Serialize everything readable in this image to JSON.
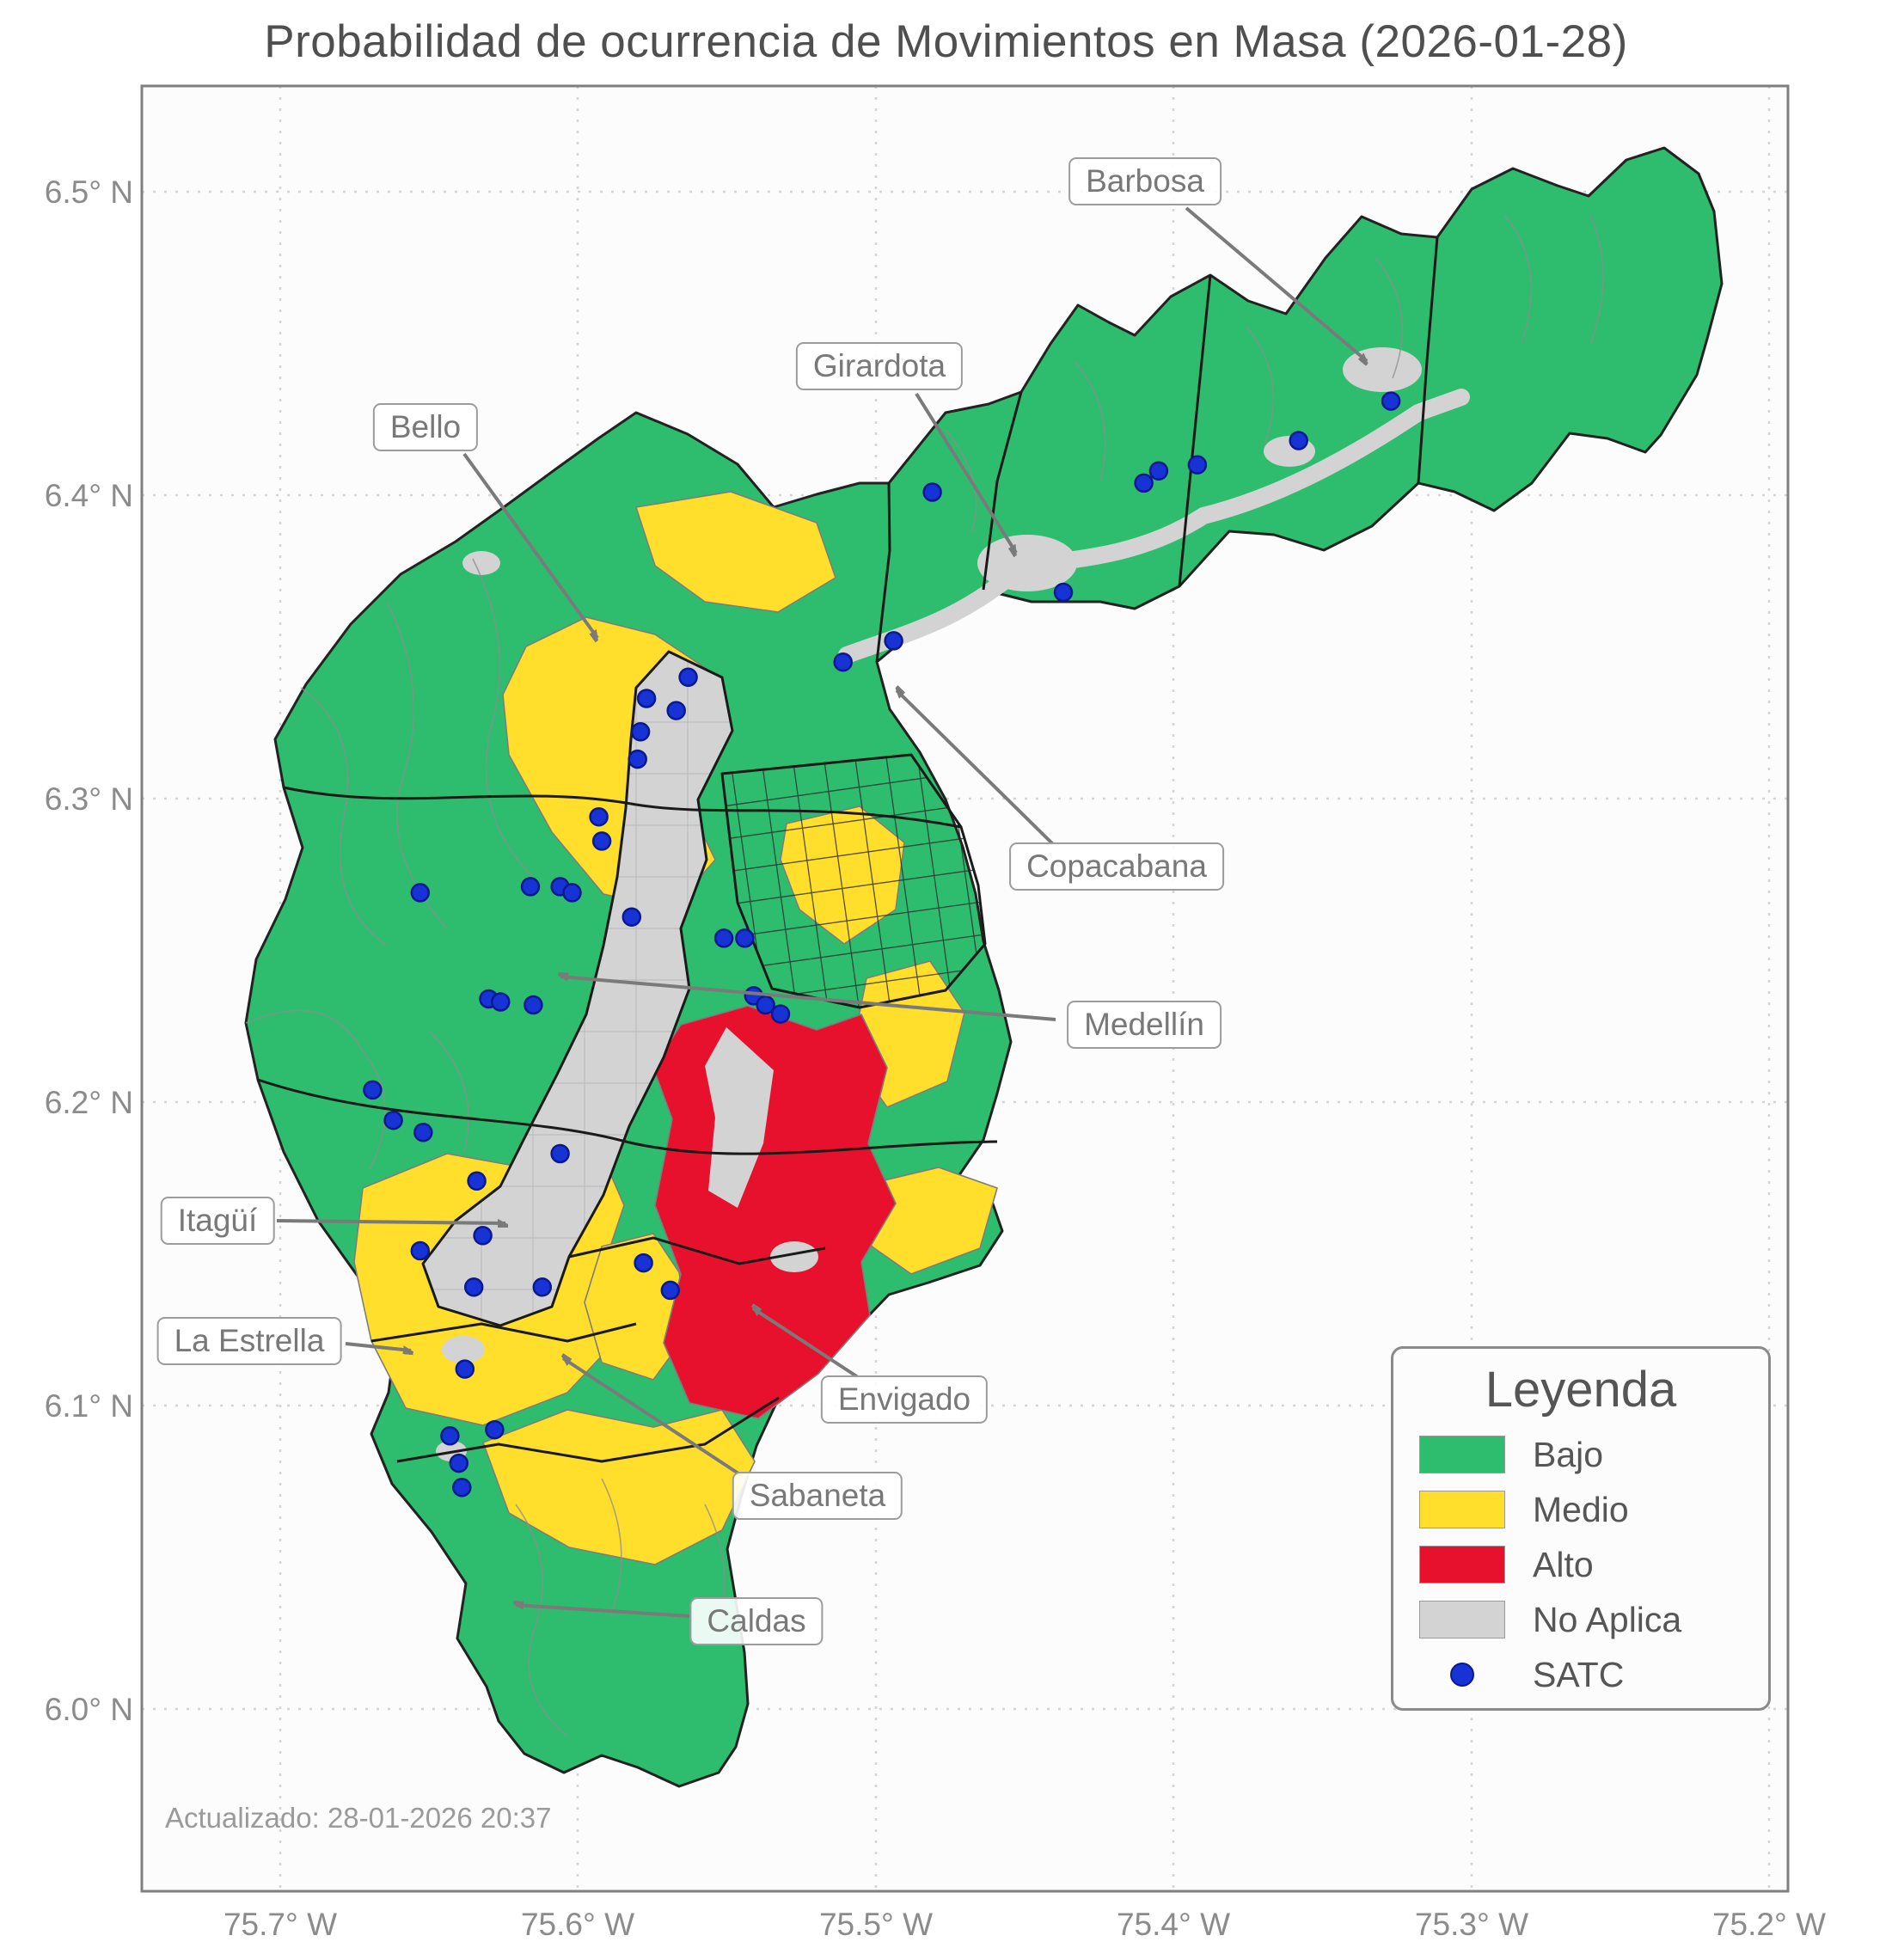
{
  "title": "Probabilidad de ocurrencia de Movimientos en Masa (2026-01-28)",
  "updated_text": "Actualizado: 28-01-2026 20:37",
  "axes": {
    "y_ticks": [
      "6.5° N",
      "6.4° N",
      "6.3° N",
      "6.2° N",
      "6.1° N",
      "6.0° N"
    ],
    "x_ticks": [
      "75.7° W",
      "75.6° W",
      "75.5° W",
      "75.4° W",
      "75.3° W",
      "75.2° W"
    ]
  },
  "legend": {
    "title": "Leyenda",
    "items": [
      {
        "label": "Bajo",
        "color": "#2ebd6e",
        "type": "swatch"
      },
      {
        "label": "Medio",
        "color": "#ffdf2b",
        "type": "swatch"
      },
      {
        "label": "Alto",
        "color": "#e8112d",
        "type": "swatch"
      },
      {
        "label": "No Aplica",
        "color": "#d3d3d3",
        "type": "swatch"
      },
      {
        "label": "SATC",
        "color": "#1733d6",
        "type": "dot"
      }
    ]
  },
  "map_labels": [
    {
      "name": "Barbosa"
    },
    {
      "name": "Girardota"
    },
    {
      "name": "Bello"
    },
    {
      "name": "Copacabana"
    },
    {
      "name": "Medellín"
    },
    {
      "name": "Itagüí"
    },
    {
      "name": "La Estrella"
    },
    {
      "name": "Envigado"
    },
    {
      "name": "Sabaneta"
    },
    {
      "name": "Caldas"
    }
  ],
  "colors": {
    "bajo": "#2ebd6e",
    "medio": "#ffdf2b",
    "alto": "#e8112d",
    "no_aplica": "#d3d3d3",
    "satc": "#1733d6"
  },
  "satc_points": [
    [
      -75.327,
      6.431
    ],
    [
      -75.358,
      6.418
    ],
    [
      -75.392,
      6.41
    ],
    [
      -75.405,
      6.408
    ],
    [
      -75.41,
      6.404
    ],
    [
      -75.481,
      6.401
    ],
    [
      -75.437,
      6.368
    ],
    [
      -75.494,
      6.352
    ],
    [
      -75.511,
      6.345
    ],
    [
      -75.563,
      6.34
    ],
    [
      -75.577,
      6.333
    ],
    [
      -75.567,
      6.329
    ],
    [
      -75.579,
      6.322
    ],
    [
      -75.58,
      6.313
    ],
    [
      -75.593,
      6.294
    ],
    [
      -75.592,
      6.286
    ],
    [
      -75.653,
      6.269
    ],
    [
      -75.616,
      6.271
    ],
    [
      -75.606,
      6.271
    ],
    [
      -75.602,
      6.269
    ],
    [
      -75.582,
      6.261
    ],
    [
      -75.551,
      6.254
    ],
    [
      -75.544,
      6.254
    ],
    [
      -75.63,
      6.234
    ],
    [
      -75.626,
      6.233
    ],
    [
      -75.615,
      6.232
    ],
    [
      -75.541,
      6.235
    ],
    [
      -75.537,
      6.232
    ],
    [
      -75.532,
      6.229
    ],
    [
      -75.669,
      6.204
    ],
    [
      -75.662,
      6.194
    ],
    [
      -75.652,
      6.19
    ],
    [
      -75.606,
      6.183
    ],
    [
      -75.634,
      6.174
    ],
    [
      -75.632,
      6.156
    ],
    [
      -75.653,
      6.151
    ],
    [
      -75.635,
      6.139
    ],
    [
      -75.612,
      6.139
    ],
    [
      -75.578,
      6.147
    ],
    [
      -75.569,
      6.138
    ],
    [
      -75.638,
      6.112
    ],
    [
      -75.643,
      6.09
    ],
    [
      -75.628,
      6.092
    ],
    [
      -75.64,
      6.081
    ],
    [
      -75.639,
      6.073
    ]
  ]
}
